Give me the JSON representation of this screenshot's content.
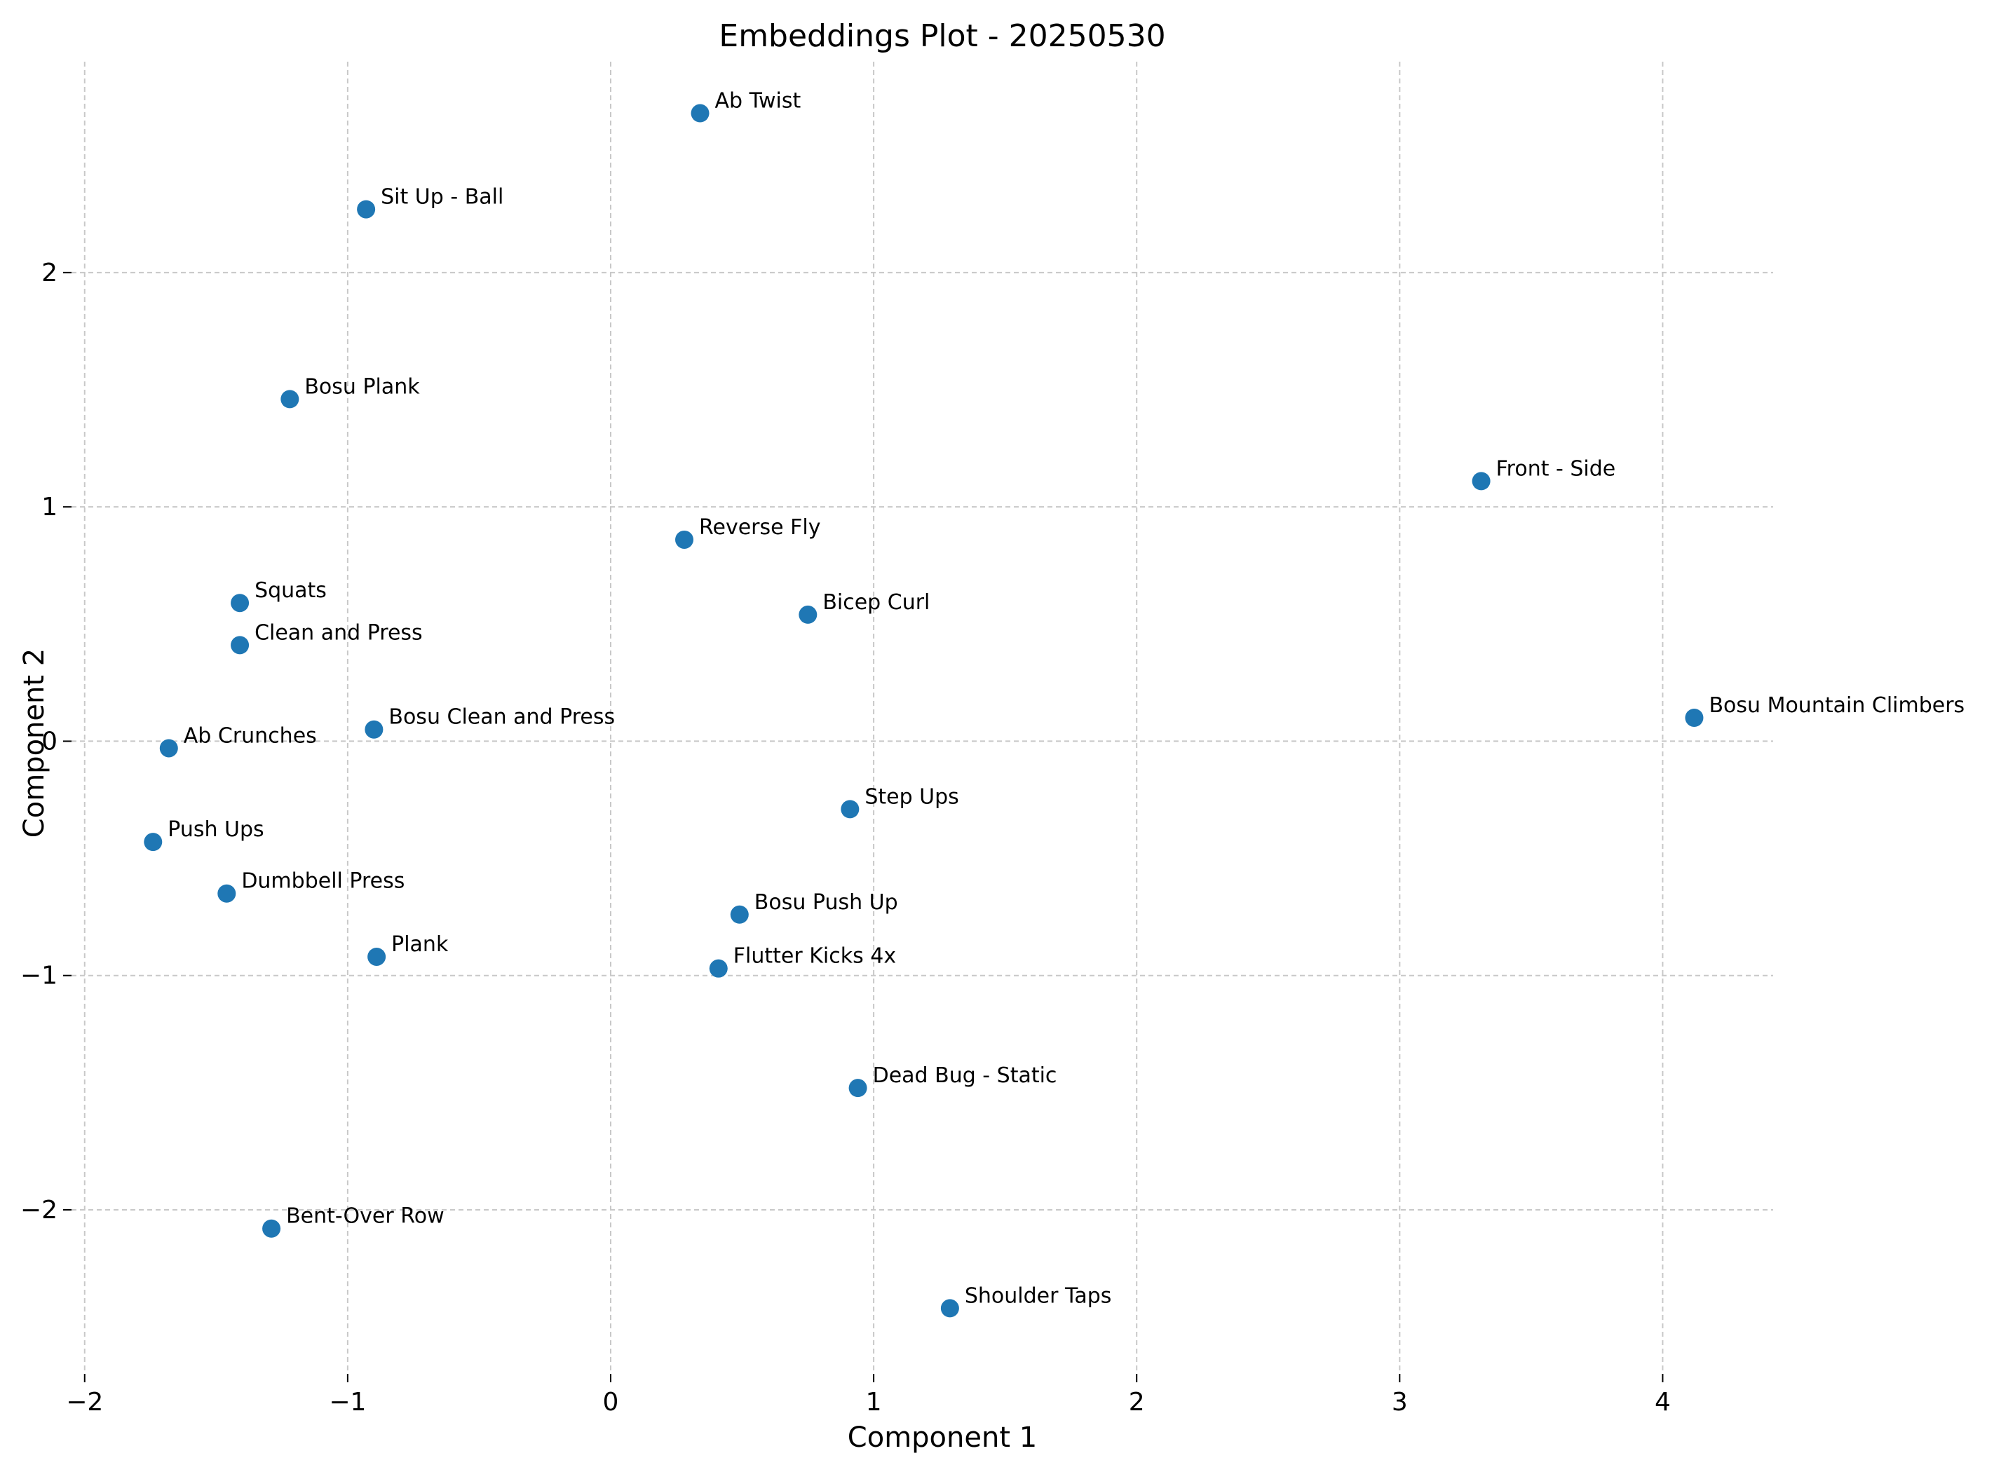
{
  "chart_data": {
    "type": "scatter",
    "title": "Embeddings Plot - 20250530",
    "xlabel": "Component 1",
    "ylabel": "Component 2",
    "xlim": [
      -2.05,
      4.42
    ],
    "ylim": [
      -2.7,
      2.9
    ],
    "grid": true,
    "marker_color": "#1f77b4",
    "x_ticks": [
      {
        "value": -2,
        "label": "−2"
      },
      {
        "value": -1,
        "label": "−1"
      },
      {
        "value": 0,
        "label": "0"
      },
      {
        "value": 1,
        "label": "1"
      },
      {
        "value": 2,
        "label": "2"
      },
      {
        "value": 3,
        "label": "3"
      },
      {
        "value": 4,
        "label": "4"
      }
    ],
    "y_ticks": [
      {
        "value": -2,
        "label": "−2"
      },
      {
        "value": -1,
        "label": "−1"
      },
      {
        "value": 0,
        "label": "0"
      },
      {
        "value": 1,
        "label": "1"
      },
      {
        "value": 2,
        "label": "2"
      }
    ],
    "points": [
      {
        "label": "Ab Twist",
        "x": 0.34,
        "y": 2.68
      },
      {
        "label": "Sit Up - Ball",
        "x": -0.93,
        "y": 2.27
      },
      {
        "label": "Bosu Plank",
        "x": -1.22,
        "y": 1.46
      },
      {
        "label": "Front - Side",
        "x": 3.31,
        "y": 1.11
      },
      {
        "label": "Reverse Fly",
        "x": 0.28,
        "y": 0.86
      },
      {
        "label": "Squats",
        "x": -1.41,
        "y": 0.59
      },
      {
        "label": "Bicep Curl",
        "x": 0.75,
        "y": 0.54
      },
      {
        "label": "Clean and Press",
        "x": -1.41,
        "y": 0.41
      },
      {
        "label": "Bosu Clean and Press",
        "x": -0.9,
        "y": 0.05
      },
      {
        "label": "Bosu Mountain Climbers",
        "x": 4.12,
        "y": 0.1
      },
      {
        "label": "Ab Crunches",
        "x": -1.68,
        "y": -0.03
      },
      {
        "label": "Step Ups",
        "x": 0.91,
        "y": -0.29
      },
      {
        "label": "Push Ups",
        "x": -1.74,
        "y": -0.43
      },
      {
        "label": "Dumbbell Press",
        "x": -1.46,
        "y": -0.65
      },
      {
        "label": "Bosu Push Up",
        "x": 0.49,
        "y": -0.74
      },
      {
        "label": "Plank",
        "x": -0.89,
        "y": -0.92
      },
      {
        "label": "Flutter Kicks 4x",
        "x": 0.41,
        "y": -0.97
      },
      {
        "label": "Dead Bug - Static",
        "x": 0.94,
        "y": -1.48
      },
      {
        "label": "Bent-Over Row",
        "x": -1.29,
        "y": -2.08
      },
      {
        "label": "Shoulder Taps",
        "x": 1.29,
        "y": -2.42
      }
    ]
  }
}
